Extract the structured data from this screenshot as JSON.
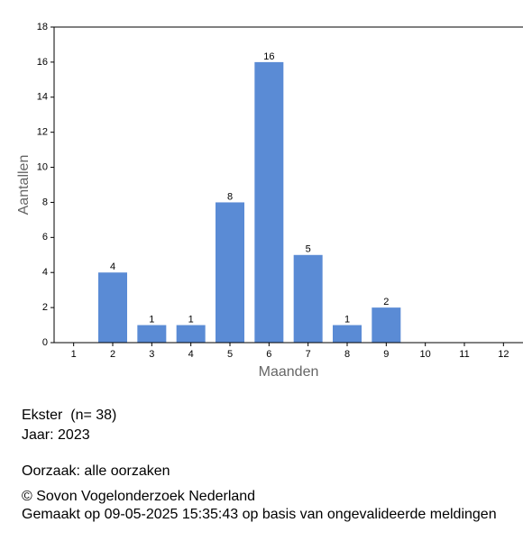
{
  "chart_data": {
    "type": "bar",
    "categories": [
      "1",
      "2",
      "3",
      "4",
      "5",
      "6",
      "7",
      "8",
      "9",
      "10",
      "11",
      "12"
    ],
    "values": [
      0,
      4,
      1,
      1,
      8,
      16,
      5,
      1,
      2,
      0,
      0,
      0
    ],
    "color": "#5a8bd5",
    "ylim": [
      0,
      18
    ],
    "yticks": [
      0,
      2,
      4,
      6,
      8,
      10,
      12,
      14,
      16,
      18
    ],
    "xlabel": "Maanden",
    "ylabel": "Aantallen"
  },
  "info": {
    "species": "Ekster  (n= 38)",
    "year": "Jaar: 2023",
    "cause": "Oorzaak: alle oorzaken",
    "copyright": "© Sovon Vogelonderzoek Nederland",
    "made": "Gemaakt op 09-05-2025 15:35:43 op basis van ongevalideerde meldingen"
  }
}
